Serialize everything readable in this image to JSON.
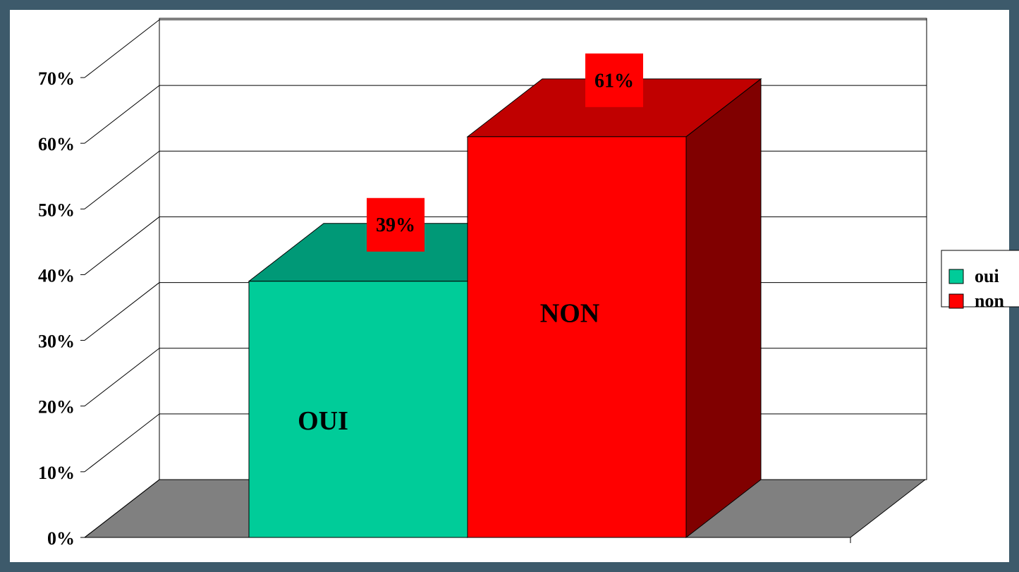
{
  "chart_data": {
    "type": "bar",
    "series": [
      {
        "name": "oui",
        "color": "#00cc99",
        "top_color": "#009977",
        "side_color": "#007755",
        "values": [
          39
        ],
        "value_labels": [
          "39%"
        ],
        "annotation": "OUI"
      },
      {
        "name": "non",
        "color": "#ff0000",
        "top_color": "#c00000",
        "side_color": "#800000",
        "values": [
          61
        ],
        "value_labels": [
          "61%"
        ],
        "annotation": "NON"
      }
    ],
    "ylim": [
      0,
      70
    ],
    "yticks": [
      {
        "value": 0,
        "label": "0%"
      },
      {
        "value": 10,
        "label": "10%"
      },
      {
        "value": 20,
        "label": "20%"
      },
      {
        "value": 30,
        "label": "30%"
      },
      {
        "value": 40,
        "label": "40%"
      },
      {
        "value": 50,
        "label": "50%"
      },
      {
        "value": 60,
        "label": "60%"
      },
      {
        "value": 70,
        "label": "70%"
      }
    ],
    "grid": true,
    "legend": "right",
    "value_label_color": "#ff0000"
  }
}
